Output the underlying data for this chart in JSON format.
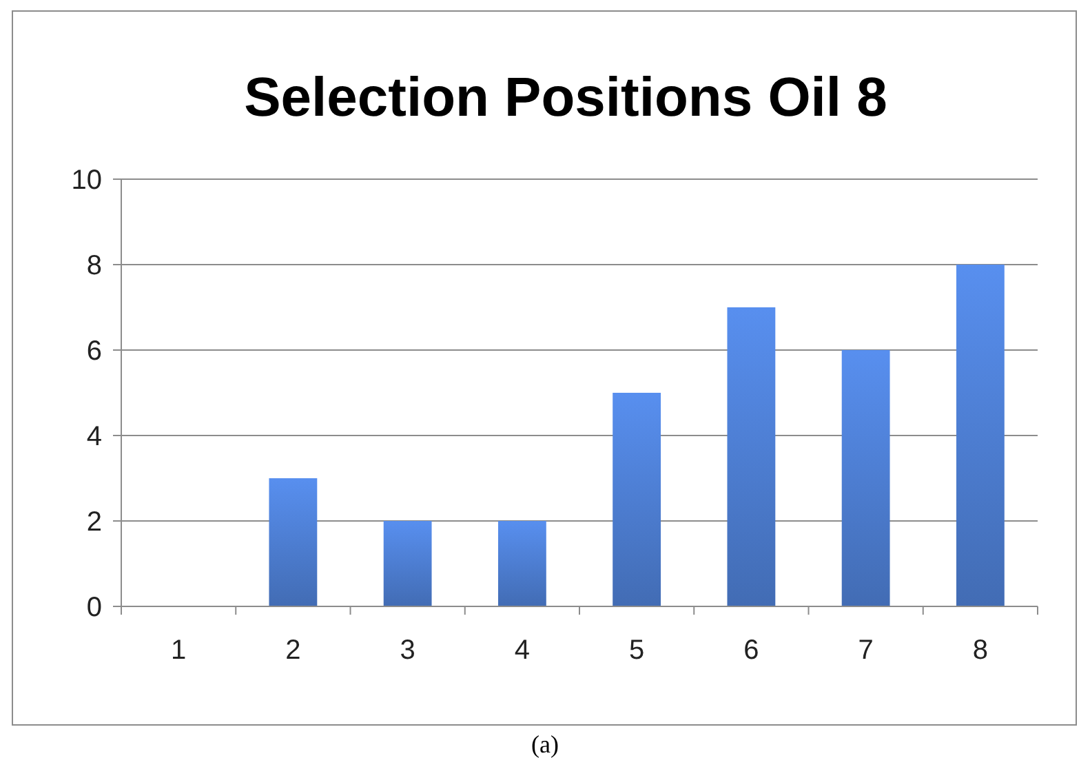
{
  "chart_data": {
    "type": "bar",
    "title": "Selection Positions Oil 8",
    "categories": [
      "1",
      "2",
      "3",
      "4",
      "5",
      "6",
      "7",
      "8"
    ],
    "values": [
      0,
      3,
      2,
      2,
      5,
      7,
      6,
      8
    ],
    "color": "#4a78c8",
    "ylim": [
      0,
      10
    ],
    "yticks": [
      0,
      2,
      4,
      6,
      8,
      10
    ],
    "grid": "y",
    "annotations": [
      "(a)"
    ]
  }
}
